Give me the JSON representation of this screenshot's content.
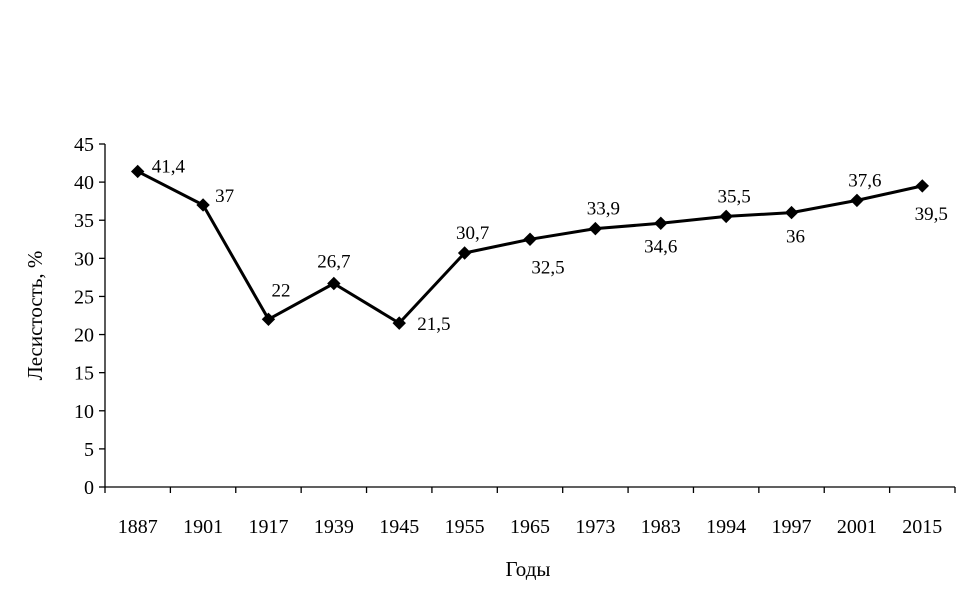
{
  "chart_data": {
    "type": "line",
    "title": "",
    "xlabel": "Годы",
    "ylabel": "Лесистость, %",
    "categories": [
      "1887",
      "1901",
      "1917",
      "1939",
      "1945",
      "1955",
      "1965",
      "1973",
      "1983",
      "1994",
      "1997",
      "2001",
      "2015"
    ],
    "series": [
      {
        "values": [
          41.4,
          37,
          22,
          26.7,
          21.5,
          30.7,
          32.5,
          33.9,
          34.6,
          35.5,
          36,
          37.6,
          39.5
        ],
        "data_labels": [
          "41,4",
          "37",
          "22",
          "26,7",
          "21,5",
          "30,7",
          "32,5",
          "33,9",
          "34,6",
          "35,5",
          "36",
          "37,6",
          "39,5"
        ],
        "color": "#000000",
        "marker": "diamond"
      }
    ],
    "ylim": [
      0,
      45
    ],
    "yticks": [
      0,
      5,
      10,
      15,
      20,
      25,
      30,
      35,
      40,
      45
    ],
    "grid": false,
    "legend": "none"
  }
}
